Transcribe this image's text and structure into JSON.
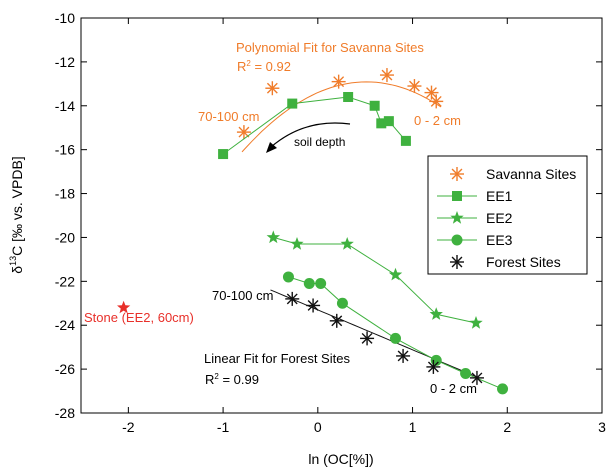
{
  "chart_data": {
    "type": "scatter",
    "xlabel": "ln (OC[%])",
    "ylabel_main": "δ",
    "ylabel_sup": "13",
    "ylabel_rest": "C [‰ vs. VPDB]",
    "xlim": [
      -2.5,
      3
    ],
    "ylim": [
      -28,
      -10
    ],
    "xticks": [
      -2,
      -1,
      0,
      1,
      2,
      3
    ],
    "yticks": [
      -28,
      -26,
      -24,
      -22,
      -20,
      -18,
      -16,
      -14,
      -12,
      -10
    ],
    "grid": false,
    "legend_position": "middle-right",
    "colors": {
      "savanna": "#f07c2a",
      "ee": "#3fb13f",
      "forest": "#111111",
      "stone": "#e8302a",
      "fit_savanna": "#f07c2a",
      "fit_forest": "#111111"
    },
    "series": [
      {
        "name": "Savanna Sites",
        "marker": "asterisk",
        "connect": false,
        "x": [
          -0.78,
          -0.48,
          0.22,
          0.73,
          1.02,
          1.2,
          1.25
        ],
        "y": [
          -15.2,
          -13.2,
          -12.9,
          -12.6,
          -13.1,
          -13.4,
          -13.8
        ]
      },
      {
        "name": "EE1",
        "marker": "square",
        "connect": true,
        "x": [
          -1.0,
          -0.27,
          0.32,
          0.6,
          0.67,
          0.75,
          0.93
        ],
        "y": [
          -16.2,
          -13.9,
          -13.6,
          -14.0,
          -14.8,
          -14.7,
          -15.6
        ]
      },
      {
        "name": "EE2",
        "marker": "star",
        "connect": true,
        "x": [
          -0.47,
          -0.22,
          0.31,
          0.82,
          1.25,
          1.67
        ],
        "y": [
          -20.0,
          -20.3,
          -20.3,
          -21.7,
          -23.5,
          -23.9
        ]
      },
      {
        "name": "EE3",
        "marker": "circle",
        "connect": true,
        "x": [
          -0.31,
          -0.09,
          0.03,
          0.26,
          0.82,
          1.25,
          1.56,
          1.95
        ],
        "y": [
          -21.8,
          -22.1,
          -22.1,
          -23.0,
          -24.6,
          -25.6,
          -26.2,
          -26.9
        ]
      },
      {
        "name": "Forest Sites",
        "marker": "asterisk",
        "connect": false,
        "x": [
          -0.27,
          -0.05,
          0.2,
          0.52,
          0.9,
          1.22,
          1.68
        ],
        "y": [
          -22.8,
          -23.1,
          -23.8,
          -24.6,
          -25.4,
          -25.9,
          -26.4
        ]
      }
    ],
    "extra_points": [
      {
        "name": "Stone (EE2, 60cm)",
        "x": -2.05,
        "y": -23.2,
        "marker": "star"
      }
    ],
    "fits": [
      {
        "name": "Polynomial Fit for Savanna Sites",
        "type": "quadratic",
        "x_range": [
          -0.8,
          1.3
        ],
        "coeffs": [
          -13.4,
          1.9,
          -1.85
        ]
      },
      {
        "name": "Linear Fit for Forest Sites",
        "type": "linear",
        "x_range": [
          -0.5,
          1.7
        ],
        "coeffs": [
          -23.3,
          -1.82
        ]
      }
    ],
    "annotations": {
      "poly_title": "Polynomial Fit for Savanna Sites",
      "poly_r2_prefix": "R",
      "poly_r2_sup": "2",
      "poly_r2_value": " = 0.92",
      "savanna_depth_low": "70-100 cm",
      "savanna_depth_high": "0 - 2 cm",
      "soil_depth": "soil depth",
      "linear_title": "Linear Fit for Forest Sites",
      "linear_r2_prefix": "R",
      "linear_r2_sup": "2",
      "linear_r2_value": " = 0.99",
      "forest_depth_low": "70-100 cm",
      "forest_depth_high": "0 - 2 cm",
      "stone_label": "Stone (EE2, 60cm)"
    }
  }
}
